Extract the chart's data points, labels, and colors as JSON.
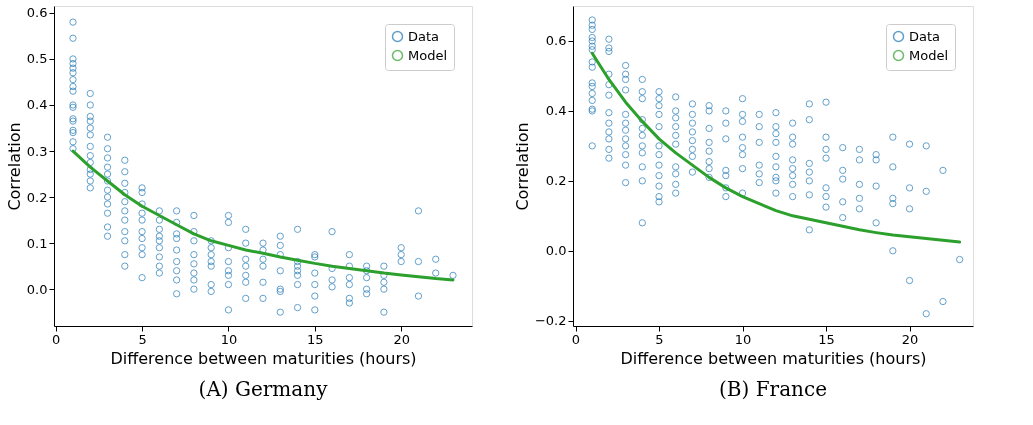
{
  "chart_data": [
    {
      "type": "scatter",
      "title": "(A) Germany",
      "xlabel": "Difference between maturities (hours)",
      "ylabel": "Correlation",
      "legend": "top right",
      "grid": false,
      "xlim": [
        -0.1,
        24.1
      ],
      "ylim": [
        -0.08,
        0.615
      ],
      "xticks": [
        0,
        5,
        10,
        15,
        20
      ],
      "yticks": [
        {
          "value": 0,
          "label": "0.0"
        },
        {
          "value": 0.1,
          "label": "0.1"
        },
        {
          "value": 0.2,
          "label": "0.2"
        },
        {
          "value": 0.3,
          "label": "0.3"
        },
        {
          "value": 0.4,
          "label": "0.4"
        },
        {
          "value": 0.5,
          "label": "0.5"
        },
        {
          "value": 0.6,
          "label": "0.6"
        }
      ],
      "series": [
        {
          "name": "Data",
          "marker": "circle",
          "color": "#1f77b4",
          "x": [
            1,
            1,
            1,
            1,
            1,
            1,
            1,
            1,
            1,
            1,
            1,
            1,
            1,
            1,
            1,
            1,
            1,
            2,
            2,
            2,
            2,
            2,
            2,
            2,
            2,
            2,
            2,
            2,
            2,
            2,
            3,
            3,
            3,
            3,
            3,
            3,
            3,
            3,
            3,
            3,
            3,
            3,
            4,
            4,
            4,
            4,
            4,
            4,
            4,
            4,
            4,
            4,
            4,
            5,
            5,
            5,
            5,
            5,
            5,
            5,
            5,
            5,
            5,
            6,
            6,
            6,
            6,
            6,
            6,
            6,
            6,
            6,
            7,
            7,
            7,
            7,
            7,
            7,
            7,
            7,
            7,
            8,
            8,
            8,
            8,
            8,
            8,
            8,
            8,
            9,
            9,
            9,
            9,
            9,
            9,
            9,
            10,
            10,
            10,
            10,
            10,
            10,
            10,
            10,
            11,
            11,
            11,
            11,
            11,
            11,
            11,
            12,
            12,
            12,
            12,
            12,
            12,
            13,
            13,
            13,
            13,
            13,
            13,
            13,
            14,
            14,
            14,
            14,
            14,
            14,
            14,
            15,
            15,
            15,
            15,
            15,
            15,
            16,
            16,
            16,
            16,
            17,
            17,
            17,
            17,
            17,
            17,
            18,
            18,
            18,
            18,
            18,
            19,
            19,
            19,
            19,
            19,
            20,
            20,
            20,
            21,
            21,
            21,
            22,
            22,
            23
          ],
          "values": [
            0.58,
            0.545,
            0.5,
            0.49,
            0.48,
            0.47,
            0.455,
            0.44,
            0.43,
            0.4,
            0.395,
            0.37,
            0.365,
            0.345,
            0.34,
            0.32,
            0.305,
            0.425,
            0.4,
            0.375,
            0.365,
            0.35,
            0.335,
            0.31,
            0.29,
            0.275,
            0.26,
            0.25,
            0.235,
            0.22,
            0.33,
            0.305,
            0.285,
            0.265,
            0.25,
            0.235,
            0.215,
            0.2,
            0.185,
            0.165,
            0.135,
            0.115,
            0.28,
            0.255,
            0.23,
            0.21,
            0.19,
            0.17,
            0.15,
            0.125,
            0.105,
            0.075,
            0.05,
            0.22,
            0.21,
            0.185,
            0.165,
            0.15,
            0.125,
            0.11,
            0.09,
            0.075,
            0.025,
            0.17,
            0.15,
            0.13,
            0.115,
            0.105,
            0.09,
            0.07,
            0.05,
            0.035,
            0.17,
            0.145,
            0.12,
            0.11,
            0.085,
            0.06,
            0.04,
            0.02,
            -0.01,
            0.16,
            0.125,
            0.105,
            0.075,
            0.055,
            0.035,
            0.02,
            0.0,
            0.105,
            0.09,
            0.075,
            0.06,
            0.05,
            0.01,
            -0.005,
            0.16,
            0.145,
            0.09,
            0.06,
            0.04,
            0.03,
            0.01,
            -0.045,
            0.13,
            0.1,
            0.065,
            0.05,
            0.03,
            0.015,
            -0.02,
            0.1,
            0.085,
            0.065,
            0.05,
            0.015,
            -0.02,
            0.115,
            0.095,
            0.075,
            0.04,
            0.0,
            -0.005,
            -0.05,
            0.13,
            0.06,
            0.05,
            0.04,
            0.03,
            0.01,
            -0.04,
            0.075,
            0.07,
            0.035,
            0.01,
            -0.015,
            -0.045,
            0.125,
            0.045,
            0.02,
            0.005,
            0.075,
            0.05,
            0.025,
            0.01,
            -0.02,
            -0.03,
            0.05,
            0.04,
            0.025,
            0.0,
            -0.01,
            0.05,
            0.03,
            0.015,
            0.0,
            -0.05,
            0.09,
            0.075,
            0.06,
            0.17,
            0.06,
            -0.015,
            0.065,
            0.035,
            0.03
          ]
        },
        {
          "name": "Model",
          "type": "line",
          "line_style": "solid",
          "color": "#2ca02c",
          "x": [
            1,
            2,
            3,
            4,
            5,
            6,
            7,
            8,
            9,
            10,
            11,
            12,
            13,
            14,
            15,
            16,
            17,
            18,
            19,
            20,
            21,
            22,
            23
          ],
          "values": [
            0.3,
            0.265,
            0.235,
            0.205,
            0.18,
            0.16,
            0.14,
            0.12,
            0.105,
            0.095,
            0.085,
            0.078,
            0.07,
            0.063,
            0.056,
            0.05,
            0.045,
            0.04,
            0.035,
            0.031,
            0.027,
            0.023,
            0.02
          ]
        }
      ]
    },
    {
      "type": "scatter",
      "title": "(B) France",
      "xlabel": "Difference between maturities (hours)",
      "ylabel": "Correlation",
      "legend": "top right",
      "grid": false,
      "xlim": [
        -0.15,
        23.8
      ],
      "ylim": [
        -0.215,
        0.7
      ],
      "xticks": [
        0,
        5,
        10,
        15,
        20
      ],
      "yticks": [
        {
          "value": -0.2,
          "label": "−0.2"
        },
        {
          "value": 0,
          "label": "0.0"
        },
        {
          "value": 0.2,
          "label": "0.2"
        },
        {
          "value": 0.4,
          "label": "0.4"
        },
        {
          "value": 0.6,
          "label": "0.6"
        }
      ],
      "series": [
        {
          "name": "Data",
          "marker": "circle",
          "color": "#1f77b4",
          "x": [
            1,
            1,
            1,
            1,
            1,
            1,
            1,
            1,
            1,
            1,
            1,
            1,
            1,
            1,
            1,
            1,
            2,
            2,
            2,
            2,
            2,
            2,
            2,
            2,
            2,
            2,
            2,
            2,
            3,
            3,
            3,
            3,
            3,
            3,
            3,
            3,
            3,
            3,
            3,
            3,
            4,
            4,
            4,
            4,
            4,
            4,
            4,
            4,
            4,
            4,
            4,
            5,
            5,
            5,
            5,
            5,
            5,
            5,
            5,
            5,
            5,
            5,
            5,
            6,
            6,
            6,
            6,
            6,
            6,
            6,
            6,
            6,
            6,
            7,
            7,
            7,
            7,
            7,
            7,
            7,
            7,
            8,
            8,
            8,
            8,
            8,
            8,
            8,
            8,
            9,
            9,
            9,
            9,
            9,
            9,
            9,
            10,
            10,
            10,
            10,
            10,
            10,
            10,
            10,
            11,
            11,
            11,
            11,
            11,
            11,
            12,
            12,
            12,
            12,
            12,
            12,
            12,
            12,
            12,
            13,
            13,
            13,
            13,
            13,
            13,
            13,
            13,
            14,
            14,
            14,
            14,
            14,
            14,
            14,
            15,
            15,
            15,
            15,
            15,
            15,
            15,
            16,
            16,
            16,
            16,
            16,
            17,
            17,
            17,
            17,
            17,
            18,
            18,
            18,
            18,
            19,
            19,
            19,
            19,
            19,
            20,
            20,
            20,
            20,
            21,
            21,
            21,
            22,
            22,
            23
          ],
          "values": [
            0.66,
            0.645,
            0.633,
            0.61,
            0.6,
            0.585,
            0.575,
            0.54,
            0.525,
            0.48,
            0.47,
            0.45,
            0.43,
            0.405,
            0.4,
            0.3,
            0.605,
            0.58,
            0.57,
            0.505,
            0.475,
            0.445,
            0.395,
            0.365,
            0.34,
            0.32,
            0.29,
            0.265,
            0.53,
            0.505,
            0.49,
            0.46,
            0.39,
            0.365,
            0.345,
            0.32,
            0.3,
            0.275,
            0.245,
            0.195,
            0.49,
            0.455,
            0.435,
            0.375,
            0.35,
            0.33,
            0.3,
            0.28,
            0.24,
            0.2,
            0.08,
            0.455,
            0.435,
            0.415,
            0.39,
            0.355,
            0.3,
            0.275,
            0.245,
            0.215,
            0.185,
            0.155,
            0.14,
            0.44,
            0.4,
            0.38,
            0.355,
            0.33,
            0.305,
            0.24,
            0.22,
            0.19,
            0.165,
            0.42,
            0.39,
            0.365,
            0.34,
            0.315,
            0.29,
            0.27,
            0.225,
            0.415,
            0.4,
            0.35,
            0.31,
            0.285,
            0.255,
            0.235,
            0.21,
            0.4,
            0.365,
            0.32,
            0.23,
            0.215,
            0.18,
            0.155,
            0.435,
            0.39,
            0.37,
            0.325,
            0.295,
            0.275,
            0.235,
            0.165,
            0.39,
            0.355,
            0.31,
            0.245,
            0.22,
            0.195,
            0.395,
            0.355,
            0.335,
            0.31,
            0.27,
            0.24,
            0.21,
            0.2,
            0.165,
            0.365,
            0.325,
            0.305,
            0.26,
            0.235,
            0.215,
            0.19,
            0.155,
            0.42,
            0.375,
            0.25,
            0.225,
            0.2,
            0.16,
            0.06,
            0.425,
            0.325,
            0.29,
            0.265,
            0.18,
            0.155,
            0.125,
            0.295,
            0.23,
            0.205,
            0.14,
            0.095,
            0.29,
            0.26,
            0.19,
            0.15,
            0.12,
            0.275,
            0.26,
            0.185,
            0.08,
            0.325,
            0.24,
            0.15,
            0.135,
            0.0,
            0.305,
            0.18,
            0.12,
            -0.085,
            0.3,
            0.17,
            -0.18,
            0.23,
            -0.145,
            -0.025
          ]
        },
        {
          "name": "Model",
          "type": "line",
          "line_style": "solid",
          "color": "#2ca02c",
          "x": [
            1,
            2,
            3,
            4,
            5,
            6,
            7,
            8,
            9,
            10,
            11,
            12,
            13,
            14,
            15,
            16,
            17,
            18,
            19,
            20,
            21,
            22,
            23
          ],
          "values": [
            0.565,
            0.49,
            0.425,
            0.37,
            0.32,
            0.28,
            0.245,
            0.21,
            0.18,
            0.155,
            0.135,
            0.115,
            0.1,
            0.09,
            0.08,
            0.07,
            0.06,
            0.052,
            0.045,
            0.04,
            0.035,
            0.03,
            0.025
          ]
        }
      ]
    }
  ]
}
